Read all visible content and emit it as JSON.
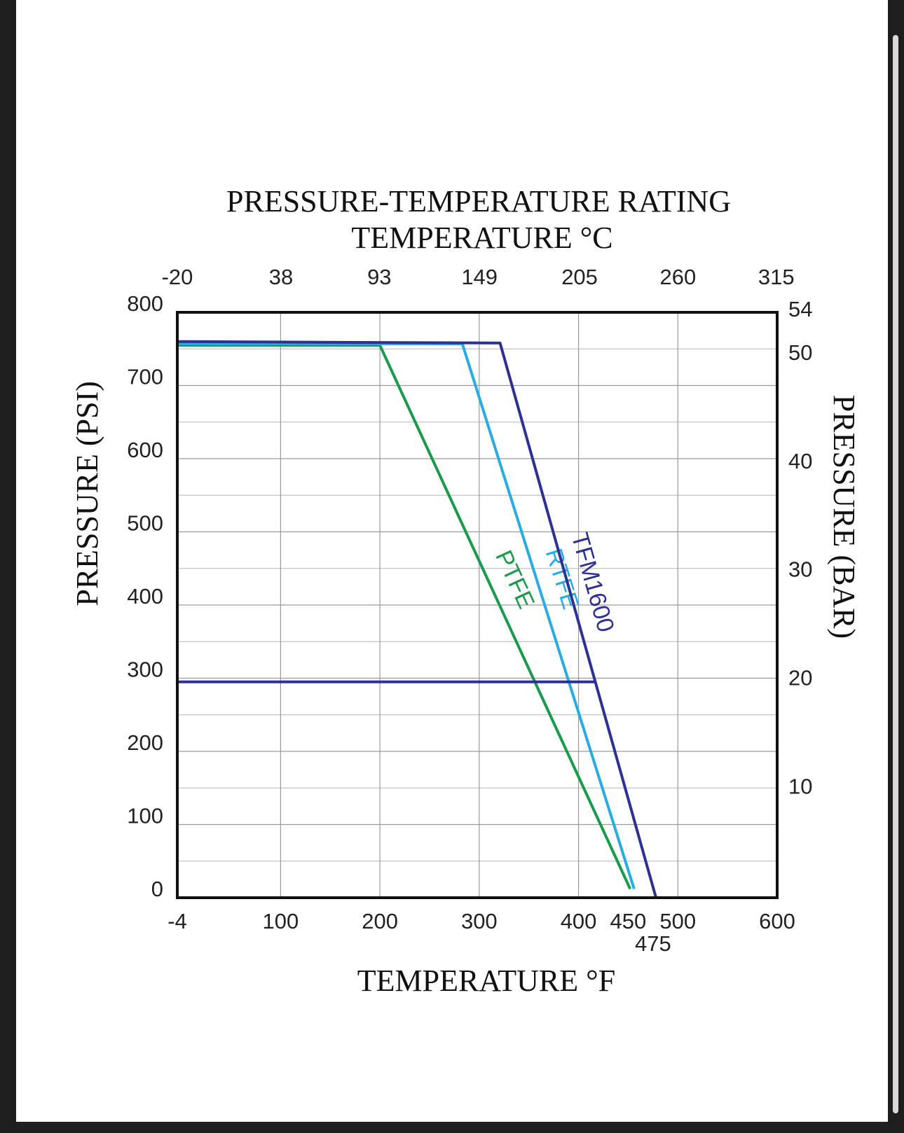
{
  "chart_data": {
    "type": "line",
    "title": "PRESSURE-TEMPERATURE RATING",
    "x2_label": "TEMPERATURE °C",
    "xlabel": "TEMPERATURE °F",
    "ylabel": "PRESSURE (PSI)",
    "y2label": "PRESSURE (BAR)",
    "xlim": [
      -4,
      600
    ],
    "xticks": [
      -4,
      100,
      200,
      300,
      400,
      500,
      600
    ],
    "x_marks": [
      450,
      475
    ],
    "x2lim": [
      -20,
      315.5
    ],
    "x2ticks": [
      -20,
      38,
      93,
      149,
      205,
      260,
      315
    ],
    "ylim": [
      0,
      800
    ],
    "yticks": [
      0,
      100,
      200,
      300,
      400,
      500,
      600,
      700,
      800
    ],
    "yminor": [
      50,
      150,
      250,
      350,
      450,
      550,
      650,
      750
    ],
    "y2lim": [
      0,
      54
    ],
    "y2ticks": [
      10,
      20,
      30,
      40,
      50,
      54
    ],
    "grid": true,
    "series": [
      {
        "name": "PTFE",
        "color": "#1c9a4b",
        "x": [
          -4,
          200,
          452
        ],
        "values": [
          755,
          755,
          12
        ]
      },
      {
        "name": "RTFE",
        "color": "#2aabe2",
        "x": [
          -4,
          283,
          456
        ],
        "values": [
          757,
          757,
          12
        ]
      },
      {
        "name": "TFM1600",
        "color": "#2e3192",
        "x": [
          -4,
          321,
          478
        ],
        "values": [
          760,
          758,
          0
        ]
      },
      {
        "name": null,
        "color": "#2e3192",
        "x": [
          -4,
          418
        ],
        "values": [
          295,
          295
        ]
      }
    ]
  }
}
